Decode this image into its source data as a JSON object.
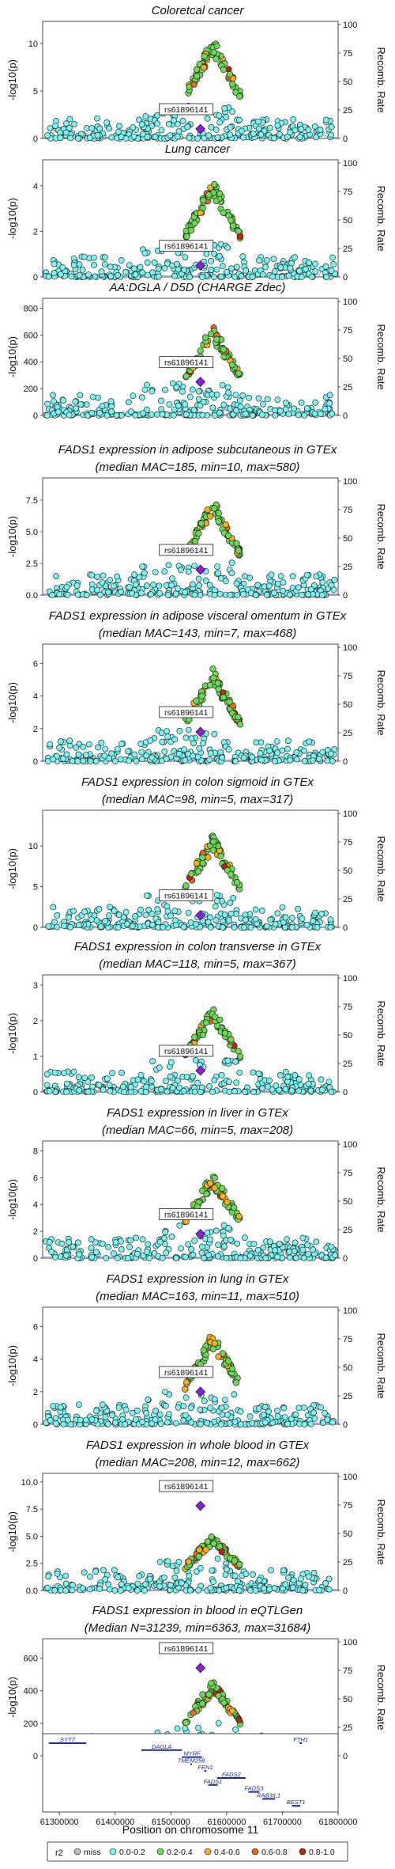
{
  "figure": {
    "lead_snp": "rs61896141",
    "ylabel_left": "-log10(p)",
    "ylabel_right": "Recomb. Rate",
    "recomb_ticks": [
      0,
      25,
      50,
      75,
      100
    ],
    "legend": {
      "title": "r2",
      "items": [
        {
          "label": "miss",
          "color": "#bdbdbd"
        },
        {
          "label": "0.0-0.2",
          "color": "#7ff2f0"
        },
        {
          "label": "0.2-0.4",
          "color": "#6fd65a"
        },
        {
          "label": "0.4-0.6",
          "color": "#f2b01e"
        },
        {
          "label": "0.6-0.8",
          "color": "#e26b1e"
        },
        {
          "label": "0.8-1.0",
          "color": "#b22a12"
        }
      ],
      "lead_color": "#8a1fd6"
    }
  },
  "chart_data": [
    {
      "type": "scatter",
      "title_lines": [
        "Coloretcal cancer"
      ],
      "ylim": [
        0,
        12
      ],
      "yticks": [
        0,
        5,
        10
      ],
      "peak": 10.8,
      "lead_y": 1.0
    },
    {
      "type": "scatter",
      "title_lines": [
        "Lung cancer"
      ],
      "ylim": [
        0,
        5
      ],
      "yticks": [
        0,
        2,
        4
      ],
      "peak": 4.3,
      "lead_y": 0.5
    },
    {
      "type": "scatter",
      "title_lines": [
        "AA:DGLA / D5D (CHARGE Zdec)"
      ],
      "ylim": [
        0,
        850
      ],
      "yticks": [
        0,
        200,
        400,
        600,
        800
      ],
      "peak": 680,
      "lead_y": 250
    },
    {
      "type": "scatter",
      "title_lines": [
        "FADS1 expression in adipose subcutaneous in GTEx",
        "(median MAC=185, min=10, max=580)"
      ],
      "ylim": [
        0,
        9
      ],
      "yticks": [
        0,
        2.5,
        5.0,
        7.5
      ],
      "ytick_labels": [
        "0.0",
        "2.5",
        "5.0",
        "7.5"
      ],
      "peak": 7.7,
      "lead_y": 2.0
    },
    {
      "type": "scatter",
      "title_lines": [
        "FADS1 expression in adipose visceral omentum in GTEx",
        "(median MAC=143, min=7, max=468)"
      ],
      "ylim": [
        0,
        7
      ],
      "yticks": [
        0,
        2,
        4,
        6
      ],
      "peak": 5.7,
      "lead_y": 1.8
    },
    {
      "type": "scatter",
      "title_lines": [
        "FADS1 expression in colon sigmoid in GTEx",
        "(median MAC=98, min=5, max=317)"
      ],
      "ylim": [
        0,
        14
      ],
      "yticks": [
        0,
        5,
        10
      ],
      "peak": 11.5,
      "lead_y": 1.5
    },
    {
      "type": "scatter",
      "title_lines": [
        "FADS1 expression in colon transverse in GTEx",
        "(median MAC=118, min=5, max=367)"
      ],
      "ylim": [
        0,
        3.2
      ],
      "yticks": [
        0,
        1,
        2,
        3
      ],
      "peak": 2.4,
      "lead_y": 0.6
    },
    {
      "type": "scatter",
      "title_lines": [
        "FADS1 expression in liver in GTEx",
        "(median MAC=66, min=5, max=208)"
      ],
      "ylim": [
        0,
        8.5
      ],
      "yticks": [
        0,
        2,
        4,
        6,
        8
      ],
      "peak": 6.5,
      "lead_y": 1.8
    },
    {
      "type": "scatter",
      "title_lines": [
        "FADS1 expression in lung in GTEx",
        "(median MAC=163, min=11, max=510)"
      ],
      "ylim": [
        0,
        7
      ],
      "yticks": [
        0,
        2,
        4,
        6
      ],
      "peak": 5.7,
      "lead_y": 2.0
    },
    {
      "type": "scatter",
      "title_lines": [
        "FADS1 expression in whole blood in GTEx",
        "(median MAC=208, min=12, max=662)"
      ],
      "ylim": [
        0,
        10.5
      ],
      "yticks": [
        0,
        2.5,
        5.0,
        7.5,
        10.0
      ],
      "ytick_labels": [
        "0.0",
        "2.5",
        "5.0",
        "7.5",
        "10.0"
      ],
      "peak": 5.2,
      "lead_y": 7.8
    },
    {
      "type": "scatter",
      "title_lines": [
        "FADS1 expression in blood in eQTLGen",
        "(Median N=31239, min=6363, max=31684)"
      ],
      "ylim": [
        0,
        700
      ],
      "yticks": [
        0,
        200,
        400,
        600
      ],
      "peak": 470,
      "lead_y": 540
    }
  ],
  "gene_track": {
    "xlabel": "Position on chromosome 11",
    "xticks": [
      61300000,
      61400000,
      61500000,
      61600000,
      61700000,
      61800000
    ],
    "xtick_labels": [
      "61300000",
      "61400000",
      "61500000",
      "61600000",
      "61700000",
      "61800000"
    ],
    "genes": [
      {
        "name": "SYT7",
        "start": 61281000,
        "end": 61348000,
        "row": 0
      },
      {
        "name": "DAGLA",
        "start": 61447000,
        "end": 61520000,
        "row": 1
      },
      {
        "name": "FTH1",
        "start": 61731000,
        "end": 61735000,
        "row": 0
      },
      {
        "name": "MYRF",
        "start": 61520000,
        "end": 61556000,
        "row": 2
      },
      {
        "name": "TMEM258",
        "start": 61535000,
        "end": 61537000,
        "row": 3
      },
      {
        "name": "FEN1",
        "start": 61560000,
        "end": 61564000,
        "row": 4
      },
      {
        "name": "FADS2",
        "start": 61583000,
        "end": 61634000,
        "row": 5
      },
      {
        "name": "FADS1",
        "start": 61567000,
        "end": 61584000,
        "row": 6
      },
      {
        "name": "FADS3",
        "start": 61639000,
        "end": 61659000,
        "row": 7
      },
      {
        "name": "RAB3IL1",
        "start": 61664000,
        "end": 61687000,
        "row": 8
      },
      {
        "name": "BEST1",
        "start": 61717000,
        "end": 61732000,
        "row": 9
      }
    ]
  }
}
